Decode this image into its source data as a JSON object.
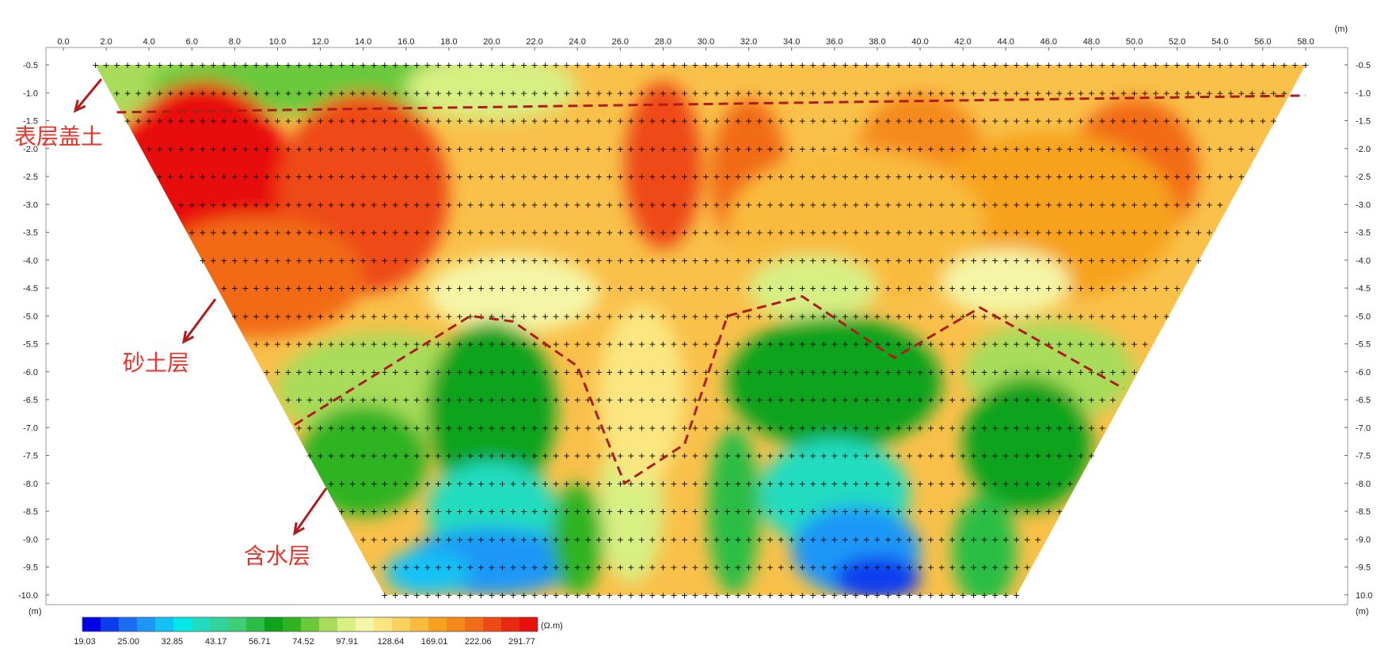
{
  "chart_data": {
    "type": "heatmap",
    "x_unit": "(m)",
    "y_unit": "(m)",
    "x_ticks": [
      "0.0",
      "2.0",
      "4.0",
      "6.0",
      "8.0",
      "10.0",
      "12.0",
      "14.0",
      "16.0",
      "18.0",
      "20.0",
      "22.0",
      "24.0",
      "26.0",
      "28.0",
      "30.0",
      "32.0",
      "34.0",
      "36.0",
      "38.0",
      "40.0",
      "42.0",
      "44.0",
      "46.0",
      "48.0",
      "50.0",
      "52.0",
      "54.0",
      "56.0",
      "58.0"
    ],
    "y_ticks": [
      "-0.5",
      "-1.0",
      "-1.5",
      "-2.0",
      "-2.5",
      "-3.0",
      "-3.5",
      "-4.0",
      "-4.5",
      "-5.0",
      "-5.5",
      "-6.0",
      "-6.5",
      "-7.0",
      "-7.5",
      "-8.0",
      "-8.5",
      "-9.0",
      "-9.5",
      "-10.0"
    ],
    "y_ticks_right_last": "10.0",
    "xlim": [
      0,
      60
    ],
    "ylim": [
      -10.0,
      -0.5
    ],
    "section_top": [
      1.5,
      58.0
    ],
    "section_bottom": [
      15.0,
      44.5
    ],
    "colorbar": {
      "unit": "(Ω.m)",
      "labels": [
        "19.03",
        "25.00",
        "32.85",
        "43.17",
        "56.71",
        "74.52",
        "97.91",
        "128.64",
        "169.01",
        "222.06",
        "291.77"
      ],
      "colors": [
        "#0000e6",
        "#0a3cf0",
        "#1a6ef5",
        "#1c97f7",
        "#12c2f5",
        "#00e8e8",
        "#20dcc0",
        "#33d39c",
        "#3ccf76",
        "#2bbd45",
        "#0ea31a",
        "#2fb322",
        "#6bc93a",
        "#a8dc5a",
        "#d8ef84",
        "#f5f5a6",
        "#fbe680",
        "#fad15c",
        "#f9bb3e",
        "#f7a21f",
        "#f58a1a",
        "#f26b18",
        "#ee4a14",
        "#e82a10",
        "#e80f0f"
      ]
    },
    "layers": [
      {
        "name": "表层盖土",
        "depth_m": [
          0.5,
          1.3
        ]
      },
      {
        "name": "砂土层",
        "depth_m": [
          1.3,
          5.0
        ]
      },
      {
        "name": "含水层",
        "depth_m": [
          5.0,
          10.0
        ]
      }
    ],
    "boundary_upper": [
      [
        2.5,
        -1.35
      ],
      [
        58.0,
        -1.05
      ]
    ],
    "boundary_lower": [
      [
        10.8,
        -6.95
      ],
      [
        19.0,
        -5.0
      ],
      [
        21.0,
        -5.1
      ],
      [
        24.0,
        -5.9
      ],
      [
        26.2,
        -8.0
      ],
      [
        29.0,
        -7.3
      ],
      [
        31.0,
        -5.0
      ],
      [
        34.5,
        -4.65
      ],
      [
        38.8,
        -5.75
      ],
      [
        42.8,
        -4.85
      ],
      [
        49.5,
        -6.3
      ]
    ]
  }
}
